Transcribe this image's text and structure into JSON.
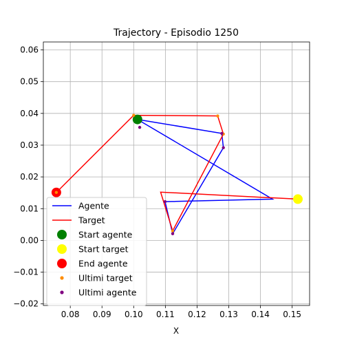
{
  "chart_data": {
    "type": "line",
    "title": "Trajectory - Episodio 1250",
    "xlabel": "X",
    "ylabel": "",
    "xlim": [
      0.0715,
      0.1555
    ],
    "ylim": [
      -0.0205,
      0.0625
    ],
    "xticks": [
      0.08,
      0.09,
      0.1,
      0.11,
      0.12,
      0.13,
      0.14,
      0.15
    ],
    "xtick_labels": [
      "0.08",
      "0.09",
      "0.10",
      "0.11",
      "0.12",
      "0.13",
      "0.14",
      "0.15"
    ],
    "yticks": [
      -0.02,
      -0.01,
      0.0,
      0.01,
      0.02,
      0.03,
      0.04,
      0.05,
      0.06
    ],
    "ytick_labels": [
      "−0.02",
      "−0.01",
      "0.00",
      "0.01",
      "0.02",
      "0.03",
      "0.04",
      "0.05",
      "0.06"
    ],
    "grid": true,
    "legend_position": "lower-left",
    "series": [
      {
        "name": "Agente",
        "kind": "line",
        "color": "#0000ff",
        "x": [
          0.1012,
          0.1278,
          0.1283,
          0.1123,
          0.1099,
          0.1438,
          0.1012
        ],
        "y": [
          0.0381,
          0.0337,
          0.0292,
          0.0021,
          0.0122,
          0.013,
          0.0381
        ]
      },
      {
        "name": "Target",
        "kind": "line",
        "color": "#ff0000",
        "x": [
          0.0756,
          0.1,
          0.1265,
          0.1283,
          0.1123,
          0.1085,
          0.1518
        ],
        "y": [
          0.0151,
          0.0394,
          0.0392,
          0.0335,
          0.003,
          0.0152,
          0.013
        ]
      },
      {
        "name": "Start agente",
        "kind": "marker",
        "color": "#008000",
        "size": 7,
        "x": [
          0.1012
        ],
        "y": [
          0.0381
        ]
      },
      {
        "name": "Start target",
        "kind": "marker",
        "color": "#ffff00",
        "size": 7,
        "x": [
          0.1518
        ],
        "y": [
          0.013
        ]
      },
      {
        "name": "End agente",
        "kind": "marker",
        "color": "#ff0000",
        "size": 7,
        "x": [
          0.0756
        ],
        "y": [
          0.0151
        ]
      },
      {
        "name": "Ultimi target",
        "kind": "marker",
        "color": "#ff8c00",
        "size": 2.2,
        "x": [
          0.0756,
          0.1,
          0.1265,
          0.1283,
          0.1123
        ],
        "y": [
          0.0151,
          0.0394,
          0.0392,
          0.0335,
          0.003
        ]
      },
      {
        "name": "Ultimi agente",
        "kind": "marker",
        "color": "#800080",
        "size": 2.2,
        "x": [
          0.1019,
          0.1278,
          0.1283,
          0.1123,
          0.1099
        ],
        "y": [
          0.0356,
          0.0337,
          0.0292,
          0.0021,
          0.0122
        ]
      }
    ]
  }
}
